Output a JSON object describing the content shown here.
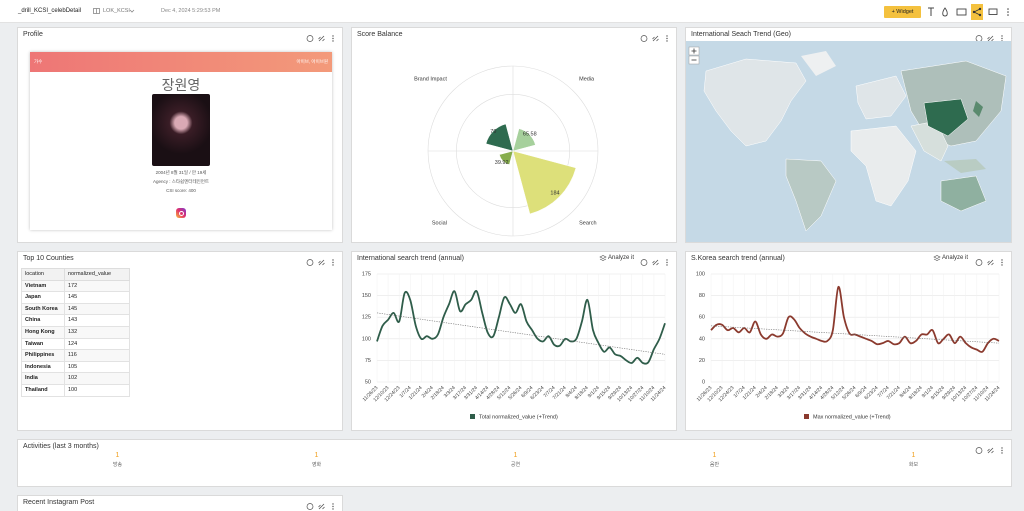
{
  "header": {
    "title": "_drill_KCSI_celebDetail",
    "dashboard": "LOK_KCSI",
    "timestamp": "Dec 4, 2024 5:29:53 PM",
    "widget_button": "+ Widget"
  },
  "analyze_label": "Analyze it",
  "profile": {
    "title": "Profile",
    "category": "가수",
    "group": "아이브, 아이브원",
    "name": "장원영",
    "birth": "2004년 8월 31일 / 만 19세",
    "agency": "Agency : 스타쉽엔터테인먼트",
    "csi": "CSI score: 400"
  },
  "geo": {
    "title": "International Seach Trend (Geo)"
  },
  "table": {
    "title": "Top 10 Counties",
    "columns": [
      "location",
      "normalized_value"
    ],
    "rows": [
      [
        "Vietnam",
        172
      ],
      [
        "Japan",
        145
      ],
      [
        "South Korea",
        145
      ],
      [
        "China",
        143
      ],
      [
        "Hong Kong",
        132
      ],
      [
        "Taiwan",
        124
      ],
      [
        "Philippines",
        116
      ],
      [
        "Indonesia",
        105
      ],
      [
        "India",
        102
      ],
      [
        "Thailand",
        100
      ]
    ]
  },
  "activities": {
    "title": "Activities (last 3 months)",
    "items": [
      {
        "count": 1,
        "label": "방송"
      },
      {
        "count": 1,
        "label": "영화"
      },
      {
        "count": 1,
        "label": "공연"
      },
      {
        "count": 1,
        "label": "음반"
      },
      {
        "count": 1,
        "label": "화보"
      }
    ]
  },
  "instagram": {
    "title": "Recent Instagram Post"
  },
  "chart_data": [
    {
      "type": "polar",
      "title": "Score Balance",
      "categories": [
        "Brand Impact",
        "Media",
        "Search",
        "Social"
      ],
      "values": [
        79,
        65.58,
        184,
        39.92
      ],
      "colors": [
        "#2e6b4f",
        "#a6d09c",
        "#dde07a",
        "#86ad4c"
      ],
      "rlim": [
        0,
        240
      ],
      "rticks": [
        160,
        240
      ]
    },
    {
      "type": "line",
      "title": "International search trend (annual)",
      "categories": [
        "11/26/23",
        null,
        "12/10/23",
        null,
        "12/24/23",
        null,
        "1/7/24",
        null,
        "1/21/24",
        null,
        "2/4/24",
        null,
        "2/18/24",
        null,
        "3/3/24",
        null,
        "3/17/24",
        null,
        "3/31/24",
        null,
        "4/14/24",
        null,
        "4/28/24",
        null,
        "5/12/24",
        null,
        "5/26/24",
        null,
        "6/9/24",
        null,
        "6/23/24",
        null,
        "7/7/24",
        null,
        "7/21/24",
        null,
        "8/4/24",
        null,
        "8/18/24",
        null,
        "9/1/24",
        null,
        "9/15/24",
        null,
        "9/29/24",
        null,
        "10/13/24",
        null,
        "10/27/24",
        null,
        "11/10/24",
        null,
        "11/24/24"
      ],
      "series": [
        {
          "name": "Total normalized_value (+Trend)",
          "color": "#2f5d4a",
          "values": [
            97,
            115,
            122,
            130,
            120,
            153,
            145,
            115,
            100,
            103,
            100,
            105,
            125,
            140,
            155,
            132,
            140,
            145,
            155,
            130,
            107,
            103,
            125,
            148,
            140,
            130,
            140,
            120,
            110,
            100,
            97,
            103,
            93,
            92,
            100,
            97,
            100,
            120,
            145,
            110,
            95,
            85,
            90,
            82,
            80,
            75,
            72,
            78,
            72,
            73,
            88,
            100,
            118
          ]
        }
      ],
      "trend": [
        130,
        82
      ],
      "ylim": [
        50,
        175
      ],
      "yticks": [
        50,
        75,
        100,
        125,
        150,
        175
      ],
      "grid": true
    },
    {
      "type": "line",
      "title": "S.Korea search trend (annual)",
      "categories": [
        "11/26/23",
        null,
        "12/10/23",
        null,
        "12/24/23",
        null,
        "1/7/24",
        null,
        "1/21/24",
        null,
        "2/4/24",
        null,
        "2/18/24",
        null,
        "3/3/24",
        null,
        "3/17/24",
        null,
        "3/31/24",
        null,
        "4/14/24",
        null,
        "4/28/24",
        null,
        "5/12/24",
        null,
        "5/26/24",
        null,
        "6/9/24",
        null,
        "6/23/24",
        null,
        "7/7/24",
        null,
        "7/21/24",
        null,
        "8/4/24",
        null,
        "8/18/24",
        null,
        "9/1/24",
        null,
        "9/15/24",
        null,
        "9/29/24",
        null,
        "10/13/24",
        null,
        "10/27/24",
        null,
        "11/10/24",
        null,
        "11/24/24"
      ],
      "series": [
        {
          "name": "Max normalized_value (+Trend)",
          "color": "#8b3a2e",
          "values": [
            48,
            53,
            53,
            48,
            50,
            46,
            50,
            46,
            56,
            44,
            40,
            44,
            42,
            45,
            60,
            58,
            50,
            45,
            42,
            40,
            38,
            38,
            48,
            88,
            60,
            45,
            44,
            42,
            40,
            38,
            35,
            36,
            38,
            35,
            36,
            42,
            36,
            38,
            44,
            44,
            48,
            36,
            40,
            44,
            36,
            42,
            36,
            32,
            30,
            28,
            36,
            40,
            38
          ]
        }
      ],
      "trend": [
        52,
        36
      ],
      "ylim": [
        0,
        100
      ],
      "yticks": [
        0,
        20,
        40,
        60,
        80,
        100
      ],
      "grid": true
    }
  ]
}
